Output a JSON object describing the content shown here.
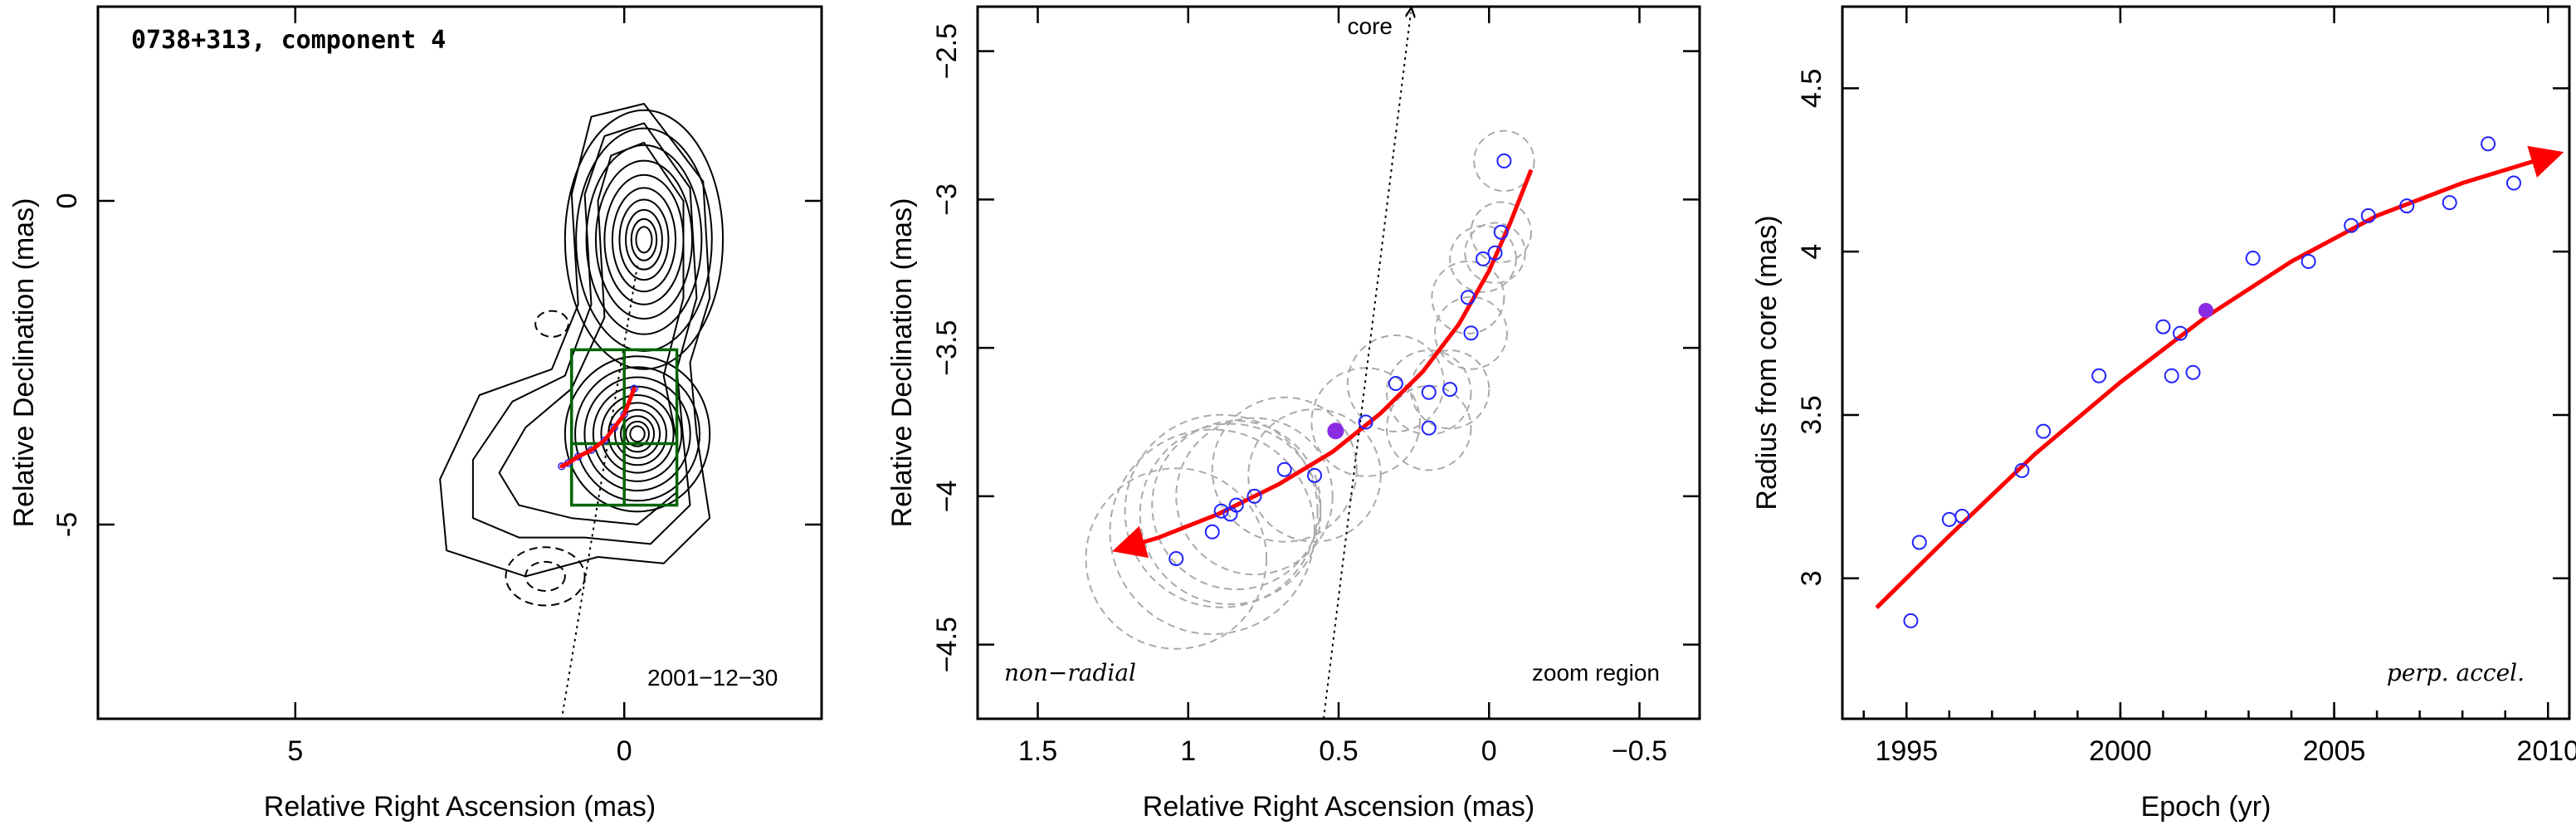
{
  "colors": {
    "fit": "#ff0000",
    "points": "#2222ff",
    "highlight": "#8a2be2",
    "box": "#006400",
    "circles": "#aaaaaa"
  },
  "chart_data": [
    {
      "type": "contour",
      "title": "0738+313, component 4",
      "xlabel": "Relative Right Ascension (mas)",
      "ylabel": "Relative Declination (mas)",
      "xlim": [
        8.0,
        -3.0
      ],
      "ylim": [
        -8.0,
        3.0
      ],
      "xticks": [
        5,
        0
      ],
      "yticks": [
        0,
        -5
      ],
      "date_label": "2001−12−30",
      "core_direction_line": [
        [
          -0.2,
          -1.0
        ],
        [
          0.95,
          -8.0
        ]
      ],
      "zoom_box": {
        "x": [
          0.8,
          -0.8
        ],
        "y": [
          -2.3,
          -4.7
        ]
      },
      "zoom_box_divisions": {
        "x": 0.0,
        "y": -3.75
      },
      "track": [
        [
          0.95,
          -4.1
        ],
        [
          0.85,
          -4.05
        ],
        [
          0.7,
          -3.95
        ],
        [
          0.5,
          -3.85
        ],
        [
          0.3,
          -3.7
        ],
        [
          0.15,
          -3.5
        ],
        [
          0.0,
          -3.3
        ],
        [
          -0.15,
          -2.9
        ]
      ],
      "contours": [
        {
          "cx": -0.3,
          "cy": -0.6,
          "rx": 1.2,
          "ry": 2.0
        },
        {
          "cx": -0.2,
          "cy": -3.6,
          "rx": 1.1,
          "ry": 1.2
        }
      ],
      "negative_contours": [
        {
          "cx": 1.1,
          "cy": -1.9,
          "rx": 0.25,
          "ry": 0.2
        },
        {
          "cx": 1.2,
          "cy": -5.8,
          "rx": 0.6,
          "ry": 0.45
        }
      ]
    },
    {
      "type": "scatter",
      "xlabel": "Relative Right Ascension (mas)",
      "ylabel": "Relative Declination (mas)",
      "xlim": [
        1.7,
        -0.7
      ],
      "ylim": [
        -4.75,
        -2.35
      ],
      "xticks": [
        1.5,
        1,
        0.5,
        0,
        -0.5
      ],
      "yticks": [
        -2.5,
        -3,
        -3.5,
        -4,
        -4.5
      ],
      "xtick_labels": [
        "1.5",
        "1",
        "0.5",
        "0",
        "−0.5"
      ],
      "ytick_labels": [
        "−2.5",
        "−3",
        "−3.5",
        "−4",
        "−4.5"
      ],
      "annotation_left": "non−radial",
      "annotation_right": "zoom region",
      "core_label": "core",
      "core_line": [
        [
          0.55,
          -4.75
        ],
        [
          0.26,
          -2.37
        ]
      ],
      "points": [
        {
          "x": 1.04,
          "y": -4.21,
          "r": 0.3
        },
        {
          "x": 0.92,
          "y": -4.12,
          "r": 0.34
        },
        {
          "x": 0.89,
          "y": -4.05,
          "r": 0.32
        },
        {
          "x": 0.86,
          "y": -4.06,
          "r": 0.3
        },
        {
          "x": 0.84,
          "y": -4.03,
          "r": 0.28
        },
        {
          "x": 0.78,
          "y": -4.0,
          "r": 0.26
        },
        {
          "x": 0.68,
          "y": -3.91,
          "r": 0.24
        },
        {
          "x": 0.58,
          "y": -3.93,
          "r": 0.22
        },
        {
          "x": 0.41,
          "y": -3.75,
          "r": 0.18
        },
        {
          "x": 0.31,
          "y": -3.62,
          "r": 0.16
        },
        {
          "x": 0.2,
          "y": -3.77,
          "r": 0.14
        },
        {
          "x": 0.2,
          "y": -3.65,
          "r": 0.14
        },
        {
          "x": 0.13,
          "y": -3.64,
          "r": 0.13
        },
        {
          "x": 0.06,
          "y": -3.45,
          "r": 0.12
        },
        {
          "x": 0.07,
          "y": -3.33,
          "r": 0.12
        },
        {
          "x": 0.02,
          "y": -3.2,
          "r": 0.11
        },
        {
          "x": -0.02,
          "y": -3.18,
          "r": 0.1
        },
        {
          "x": -0.04,
          "y": -3.11,
          "r": 0.1
        },
        {
          "x": -0.05,
          "y": -2.87,
          "r": 0.1
        }
      ],
      "highlight_point": {
        "x": 0.51,
        "y": -3.78
      },
      "fit_curve": [
        [
          -0.14,
          -2.9
        ],
        [
          -0.07,
          -3.08
        ],
        [
          0.0,
          -3.24
        ],
        [
          0.1,
          -3.42
        ],
        [
          0.22,
          -3.58
        ],
        [
          0.36,
          -3.72
        ],
        [
          0.52,
          -3.85
        ],
        [
          0.7,
          -3.96
        ],
        [
          0.9,
          -4.06
        ],
        [
          1.1,
          -4.14
        ],
        [
          1.2,
          -4.17
        ]
      ]
    },
    {
      "type": "scatter",
      "xlabel": "Epoch (yr)",
      "ylabel": "Radius from core (mas)",
      "xlim": [
        1993.5,
        2010.5
      ],
      "ylim": [
        2.57,
        4.75
      ],
      "xticks": [
        1995,
        2000,
        2005,
        2010
      ],
      "yticks": [
        3,
        3.5,
        4,
        4.5
      ],
      "annotation": "perp. accel.",
      "points": [
        {
          "x": 1995.1,
          "y": 2.87
        },
        {
          "x": 1995.3,
          "y": 3.11
        },
        {
          "x": 1996.0,
          "y": 3.18
        },
        {
          "x": 1996.3,
          "y": 3.19
        },
        {
          "x": 1997.7,
          "y": 3.33
        },
        {
          "x": 1998.2,
          "y": 3.45
        },
        {
          "x": 1999.5,
          "y": 3.62
        },
        {
          "x": 2001.0,
          "y": 3.77
        },
        {
          "x": 2001.2,
          "y": 3.62
        },
        {
          "x": 2001.4,
          "y": 3.75
        },
        {
          "x": 2001.7,
          "y": 3.63
        },
        {
          "x": 2003.1,
          "y": 3.98
        },
        {
          "x": 2004.4,
          "y": 3.97
        },
        {
          "x": 2005.4,
          "y": 4.08
        },
        {
          "x": 2005.8,
          "y": 4.11
        },
        {
          "x": 2006.7,
          "y": 4.14
        },
        {
          "x": 2007.7,
          "y": 4.15
        },
        {
          "x": 2008.6,
          "y": 4.33
        },
        {
          "x": 2009.2,
          "y": 4.21
        }
      ],
      "highlight_point": {
        "x": 2002.0,
        "y": 3.82
      },
      "fit_curve": [
        [
          1994.3,
          2.91
        ],
        [
          1996.0,
          3.13
        ],
        [
          1998.0,
          3.38
        ],
        [
          2000.0,
          3.6
        ],
        [
          2002.0,
          3.8
        ],
        [
          2004.0,
          3.97
        ],
        [
          2006.0,
          4.11
        ],
        [
          2008.0,
          4.21
        ],
        [
          2010.0,
          4.29
        ]
      ]
    }
  ]
}
